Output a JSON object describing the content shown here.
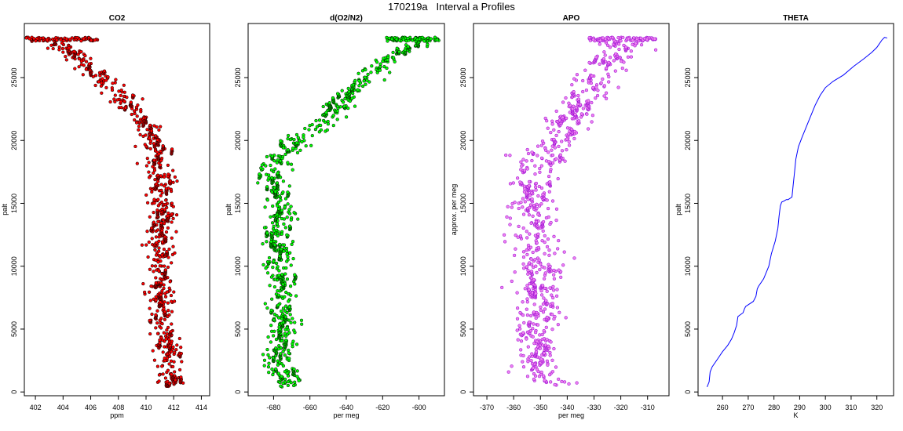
{
  "figure": {
    "title": "170219a   Interval a Profiles"
  },
  "chart_data": [
    {
      "type": "scatter",
      "title": "CO2",
      "xlabel": "ppm",
      "ylabel": "palt",
      "xlim": [
        401.2,
        414.6
      ],
      "ylim": [
        -300,
        29300
      ],
      "xticks": [
        402,
        404,
        406,
        408,
        410,
        412,
        414
      ],
      "yticks": [
        0,
        5000,
        10000,
        15000,
        20000,
        25000
      ],
      "marker_color": "#ff0000",
      "outline_color": "#000000",
      "profile": [
        [
          401.4,
          28100
        ],
        [
          402.0,
          28000
        ],
        [
          403.0,
          27800
        ],
        [
          404.0,
          27300
        ],
        [
          405.0,
          26700
        ],
        [
          406.0,
          25800
        ],
        [
          407.0,
          24700
        ],
        [
          408.0,
          23700
        ],
        [
          409.0,
          22400
        ],
        [
          410.0,
          21000
        ],
        [
          410.6,
          19500
        ],
        [
          411.0,
          18000
        ],
        [
          411.0,
          16500
        ],
        [
          411.2,
          15000
        ],
        [
          411.0,
          13000
        ],
        [
          411.2,
          11000
        ],
        [
          411.0,
          9000
        ],
        [
          410.9,
          7500
        ],
        [
          411.1,
          6000
        ],
        [
          411.5,
          4500
        ],
        [
          411.7,
          3000
        ],
        [
          411.8,
          1500
        ],
        [
          411.6,
          400
        ]
      ],
      "spread": 0.75,
      "top_band": {
        "x": [
          401.3,
          406.6
        ],
        "y": [
          27900,
          28200
        ]
      }
    },
    {
      "type": "scatter",
      "title": "d(O2/N2)",
      "xlabel": "per meg",
      "ylabel": "palt",
      "xlim": [
        -694,
        -586
      ],
      "ylim": [
        -300,
        29300
      ],
      "xticks": [
        -680,
        -660,
        -640,
        -620,
        -600
      ],
      "yticks": [
        0,
        5000,
        10000,
        15000,
        20000,
        25000
      ],
      "marker_color": "#00ff00",
      "outline_color": "#000000",
      "profile": [
        [
          -590,
          28100
        ],
        [
          -598,
          27700
        ],
        [
          -608,
          27200
        ],
        [
          -616,
          26500
        ],
        [
          -624,
          25500
        ],
        [
          -630,
          24700
        ],
        [
          -638,
          23700
        ],
        [
          -646,
          22500
        ],
        [
          -656,
          21000
        ],
        [
          -666,
          20000
        ],
        [
          -676,
          18800
        ],
        [
          -680,
          17500
        ],
        [
          -678,
          16000
        ],
        [
          -674,
          14500
        ],
        [
          -680,
          13000
        ],
        [
          -676,
          11500
        ],
        [
          -678,
          10000
        ],
        [
          -674,
          8500
        ],
        [
          -676,
          7000
        ],
        [
          -674,
          5500
        ],
        [
          -676,
          4000
        ],
        [
          -678,
          2500
        ],
        [
          -672,
          1000
        ],
        [
          -670,
          400
        ]
      ],
      "spread": 6,
      "top_band": {
        "x": [
          -618,
          -589
        ],
        "y": [
          27900,
          28200
        ]
      }
    },
    {
      "type": "scatter",
      "title": "APO",
      "xlabel": "per meg",
      "ylabel": "approx. per meg",
      "xlim": [
        -375,
        -302
      ],
      "ylim": [
        -300,
        29300
      ],
      "xticks": [
        -370,
        -360,
        -350,
        -340,
        -330,
        -320,
        -310
      ],
      "yticks": [
        0,
        5000,
        10000,
        15000,
        20000,
        25000
      ],
      "marker_color": "#ee82ee",
      "outline_color": "#9400d3",
      "profile": [
        [
          -316,
          28100
        ],
        [
          -318,
          27500
        ],
        [
          -322,
          26500
        ],
        [
          -326,
          25500
        ],
        [
          -330,
          24500
        ],
        [
          -334,
          23500
        ],
        [
          -338,
          22000
        ],
        [
          -342,
          20500
        ],
        [
          -348,
          19000
        ],
        [
          -352,
          17500
        ],
        [
          -354,
          16000
        ],
        [
          -352,
          14500
        ],
        [
          -354,
          13000
        ],
        [
          -352,
          11500
        ],
        [
          -350,
          10000
        ],
        [
          -352,
          8500
        ],
        [
          -350,
          7000
        ],
        [
          -352,
          5500
        ],
        [
          -350,
          4000
        ],
        [
          -352,
          2500
        ],
        [
          -348,
          1000
        ],
        [
          -346,
          400
        ]
      ],
      "spread": 7,
      "top_band": {
        "x": [
          -332,
          -307
        ],
        "y": [
          27900,
          28200
        ]
      }
    },
    {
      "type": "line",
      "title": "THETA",
      "xlabel": "K",
      "ylabel": "palt",
      "xlim": [
        250.5,
        326.5
      ],
      "ylim": [
        -300,
        29300
      ],
      "xticks": [
        260,
        270,
        280,
        290,
        300,
        310,
        320
      ],
      "yticks": [
        0,
        5000,
        10000,
        15000,
        20000,
        25000
      ],
      "line_color": "#0000ff",
      "x": [
        254.0,
        254.8,
        255.2,
        256.0,
        258.0,
        260.0,
        262.0,
        263.5,
        264.5,
        265.5,
        266.0,
        268.0,
        268.5,
        269.0,
        272.0,
        273.0,
        273.5,
        274.0,
        276.0,
        278.0,
        279.0,
        280.5,
        281.5,
        282.0,
        282.5,
        283.0,
        284.0,
        284.8,
        285.5,
        287.0,
        287.5,
        288.0,
        288.5,
        289.5,
        291.0,
        292.0,
        294.0,
        296.0,
        298.0,
        300.0,
        303.0,
        307.0,
        311.0,
        315.0,
        318.0,
        320.0,
        321.0,
        322.0,
        323.0,
        324.0
      ],
      "y": [
        400,
        800,
        1600,
        2000,
        2600,
        3200,
        3700,
        4200,
        4700,
        5300,
        6000,
        6300,
        6600,
        6800,
        7200,
        7600,
        8200,
        8400,
        9000,
        10000,
        11000,
        12000,
        13000,
        14000,
        14800,
        15100,
        15200,
        15300,
        15300,
        15500,
        16500,
        17500,
        18500,
        19500,
        20300,
        20800,
        21800,
        22800,
        23600,
        24200,
        24700,
        25200,
        25900,
        26500,
        27000,
        27400,
        27700,
        28000,
        28200,
        28150
      ]
    }
  ]
}
